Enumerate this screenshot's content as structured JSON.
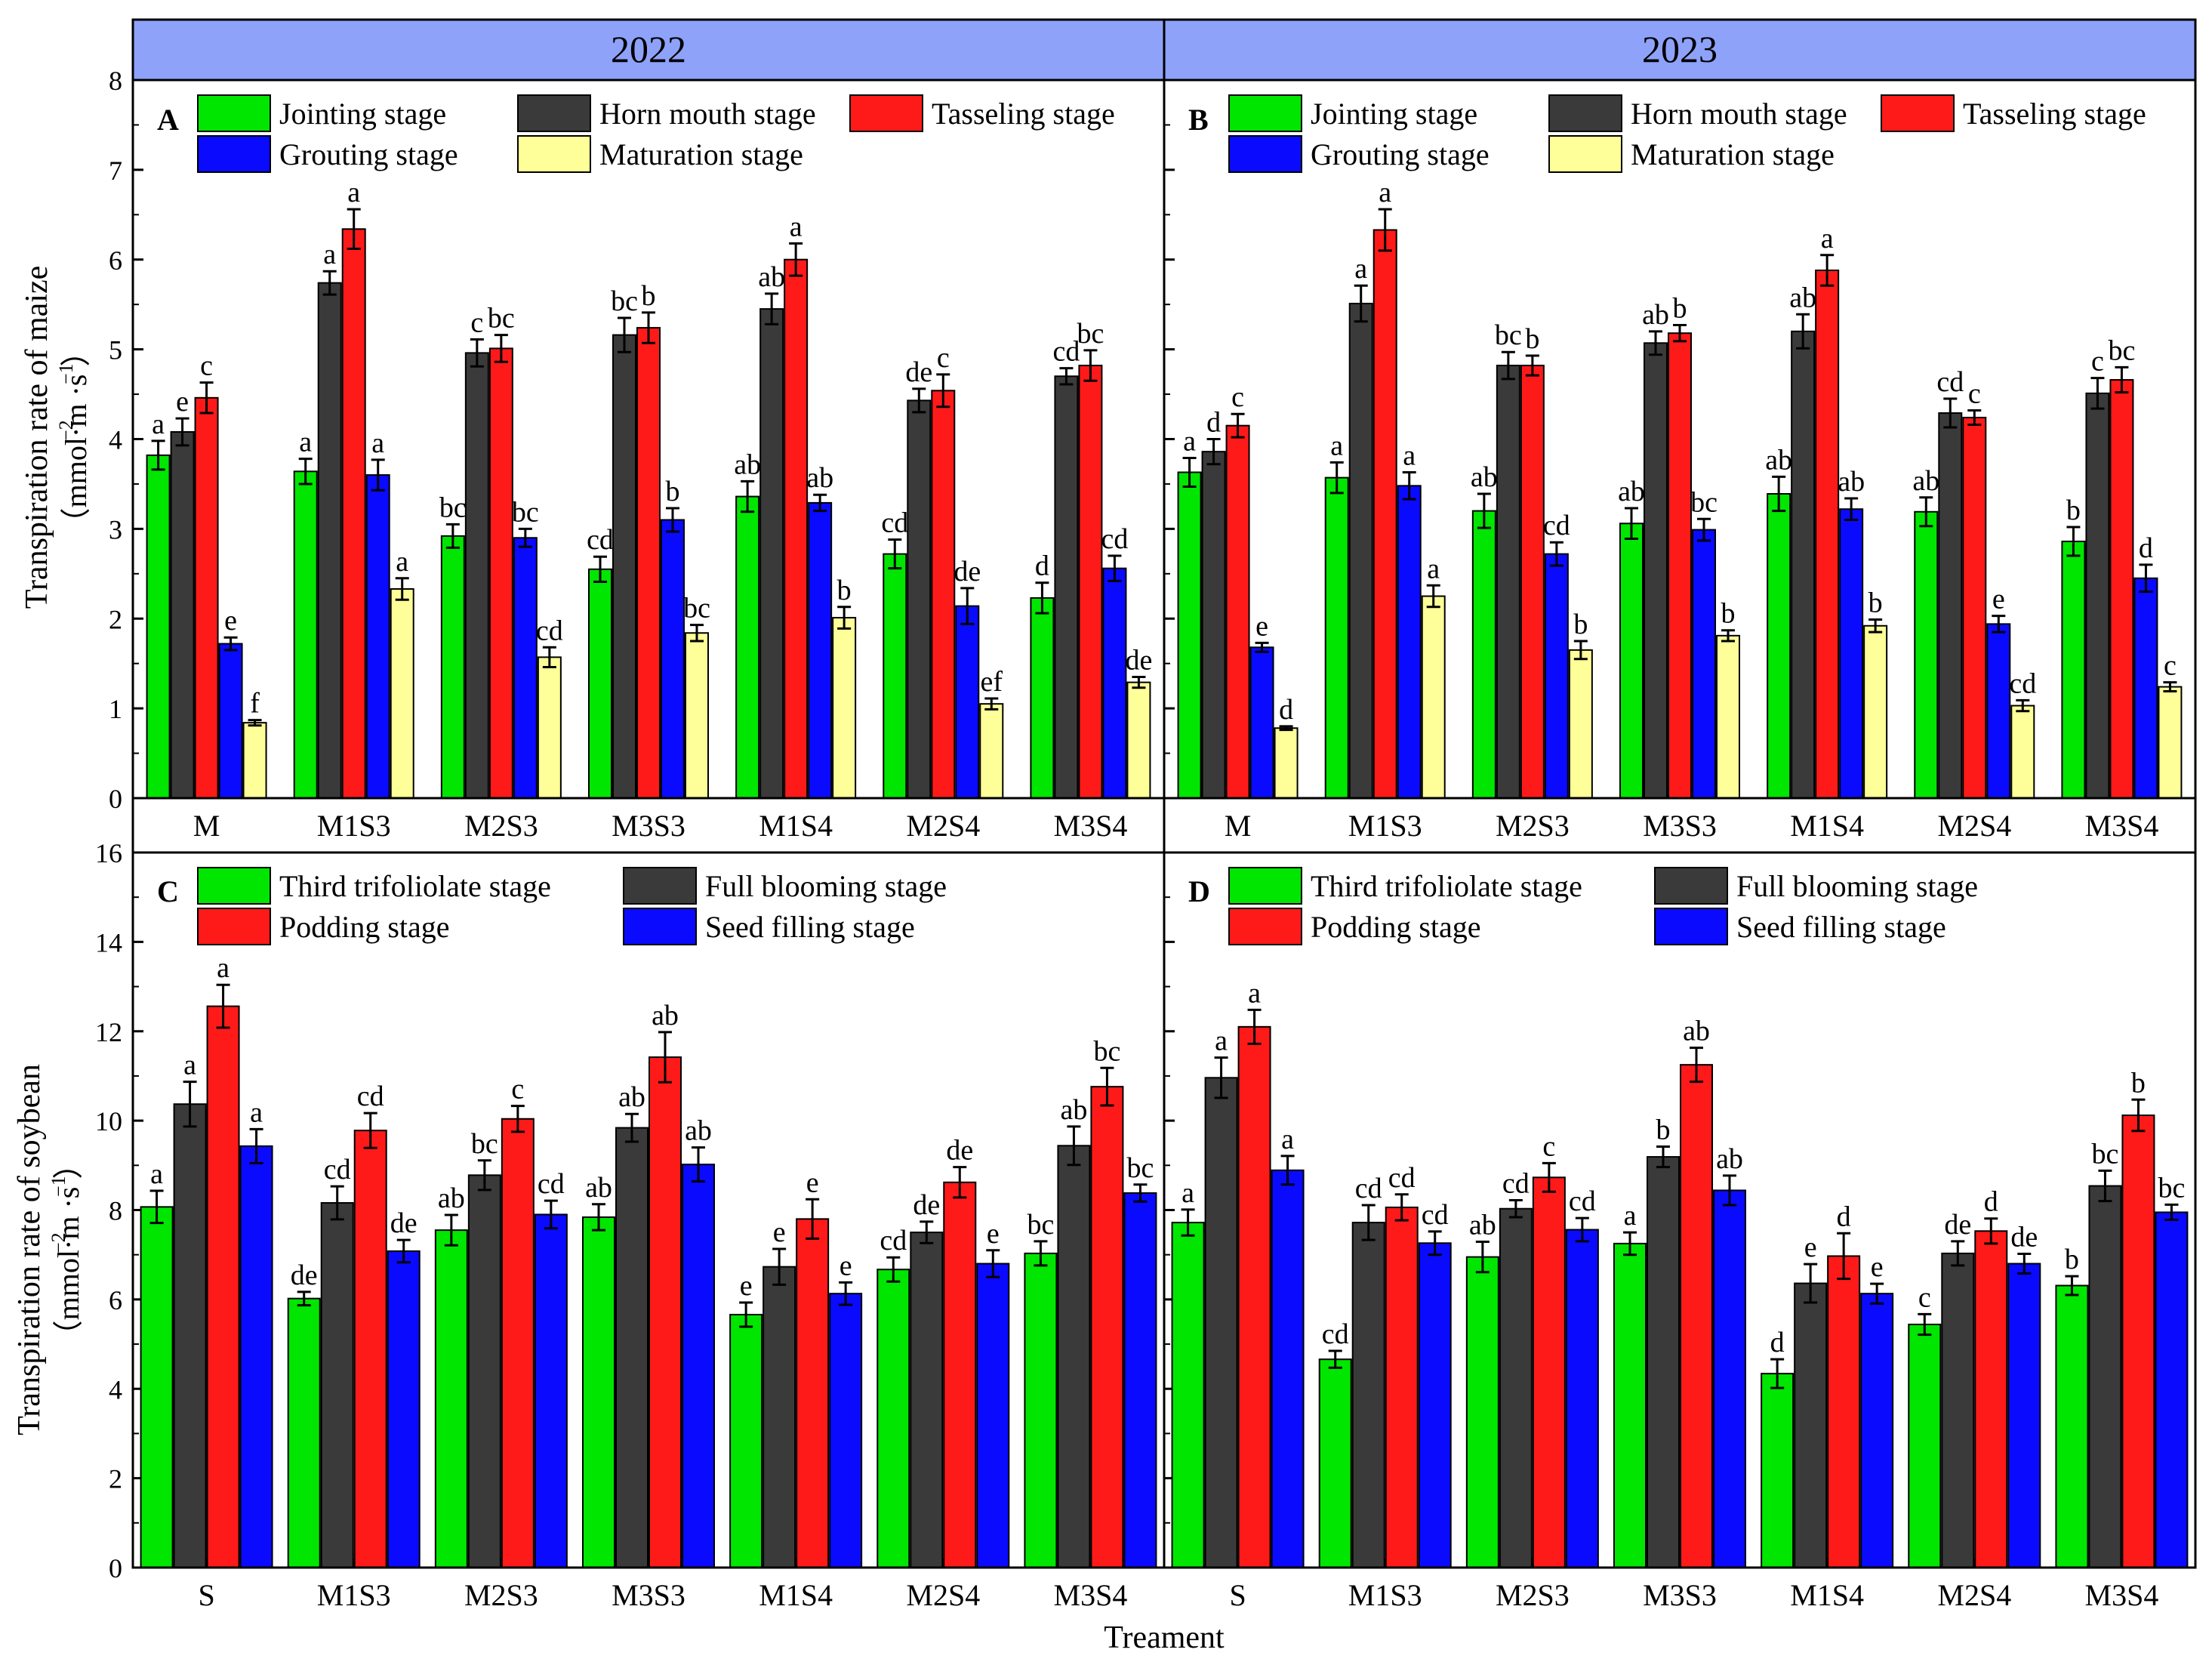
{
  "figure": {
    "year_headers": [
      "2022",
      "2023"
    ],
    "x_axis_title": "Treament",
    "maize_ylabel_line1": "Transpiration rate of maize",
    "soybean_ylabel_line1": "Transpiration rate of soybean",
    "unit_text": "（mmol·m  ·s  ）",
    "unit_sup_m": "−2",
    "unit_sup_s": "−1"
  },
  "colors": {
    "header_bg": "#8ea2fa",
    "green": "#00e600",
    "dark": "#3a3a3a",
    "red": "#ff1a1a",
    "blue": "#0a0aff",
    "yellow": "#ffff99"
  },
  "chart_data": [
    {
      "panel": "A",
      "year": "2022",
      "type": "bar",
      "ylabel": "Transpiration rate of maize (mmol·m−2·s−1)",
      "xlabel": "",
      "ylim": [
        0,
        8
      ],
      "yticks": [
        0,
        1,
        2,
        3,
        4,
        5,
        6,
        7,
        8
      ],
      "categories": [
        "M",
        "M1S3",
        "M2S3",
        "M3S3",
        "M1S4",
        "M2S4",
        "M3S4"
      ],
      "series": [
        {
          "name": "Jointing stage",
          "color": "green",
          "values": [
            3.82,
            3.64,
            2.92,
            2.55,
            3.36,
            2.72,
            2.23
          ],
          "errors": [
            0.16,
            0.14,
            0.13,
            0.14,
            0.17,
            0.16,
            0.17
          ],
          "letters": [
            "a",
            "a",
            "bc",
            "cd",
            "ab",
            "cd",
            "d"
          ]
        },
        {
          "name": "Horn mouth stage",
          "color": "dark",
          "values": [
            4.08,
            5.74,
            4.96,
            5.16,
            5.45,
            4.43,
            4.7
          ],
          "errors": [
            0.15,
            0.13,
            0.15,
            0.19,
            0.17,
            0.13,
            0.09
          ],
          "letters": [
            "e",
            "a",
            "c",
            "bc",
            "ab",
            "de",
            "cd"
          ]
        },
        {
          "name": "Tasseling stage",
          "color": "red",
          "values": [
            4.46,
            6.34,
            5.01,
            5.24,
            6.0,
            4.54,
            4.82
          ],
          "errors": [
            0.17,
            0.22,
            0.15,
            0.17,
            0.18,
            0.18,
            0.17
          ],
          "letters": [
            "c",
            "a",
            "bc",
            "b",
            "a",
            "c",
            "bc"
          ]
        },
        {
          "name": "Grouting stage",
          "color": "blue",
          "values": [
            1.72,
            3.6,
            2.9,
            3.1,
            3.29,
            2.14,
            2.56
          ],
          "errors": [
            0.07,
            0.17,
            0.1,
            0.13,
            0.09,
            0.2,
            0.14
          ],
          "letters": [
            "e",
            "a",
            "bc",
            "b",
            "ab",
            "de",
            "cd"
          ]
        },
        {
          "name": "Maturation stage",
          "color": "yellow",
          "values": [
            0.84,
            2.33,
            1.57,
            1.84,
            2.01,
            1.05,
            1.29
          ],
          "errors": [
            0.03,
            0.12,
            0.11,
            0.09,
            0.12,
            0.06,
            0.06
          ],
          "letters": [
            "f",
            "a",
            "cd",
            "bc",
            "b",
            "ef",
            "de"
          ]
        }
      ]
    },
    {
      "panel": "B",
      "year": "2023",
      "type": "bar",
      "ylabel": "Transpiration rate of maize (mmol·m−2·s−1)",
      "xlabel": "",
      "ylim": [
        0,
        8
      ],
      "yticks": [
        0,
        1,
        2,
        3,
        4,
        5,
        6,
        7,
        8
      ],
      "categories": [
        "M",
        "M1S3",
        "M2S3",
        "M3S3",
        "M1S4",
        "M2S4",
        "M3S4"
      ],
      "series": [
        {
          "name": "Jointing stage",
          "color": "green",
          "values": [
            3.63,
            3.57,
            3.2,
            3.06,
            3.39,
            3.19,
            2.86
          ],
          "errors": [
            0.16,
            0.17,
            0.19,
            0.17,
            0.19,
            0.16,
            0.16
          ],
          "letters": [
            "a",
            "a",
            "ab",
            "ab",
            "ab",
            "ab",
            "b"
          ]
        },
        {
          "name": "Horn mouth stage",
          "color": "dark",
          "values": [
            3.86,
            5.51,
            4.82,
            5.07,
            5.2,
            4.29,
            4.51
          ],
          "errors": [
            0.14,
            0.2,
            0.15,
            0.13,
            0.19,
            0.16,
            0.17
          ],
          "letters": [
            "d",
            "a",
            "bc",
            "ab",
            "ab",
            "cd",
            "c"
          ]
        },
        {
          "name": "Tasseling stage",
          "color": "red",
          "values": [
            4.15,
            6.33,
            4.82,
            5.18,
            5.88,
            4.24,
            4.66
          ],
          "errors": [
            0.13,
            0.23,
            0.11,
            0.09,
            0.17,
            0.08,
            0.14
          ],
          "letters": [
            "c",
            "a",
            "b",
            "b",
            "a",
            "c",
            "bc"
          ]
        },
        {
          "name": "Grouting stage",
          "color": "blue",
          "values": [
            1.68,
            3.48,
            2.72,
            2.99,
            3.22,
            1.94,
            2.45
          ],
          "errors": [
            0.05,
            0.15,
            0.13,
            0.12,
            0.12,
            0.09,
            0.15
          ],
          "letters": [
            "e",
            "a",
            "cd",
            "bc",
            "ab",
            "e",
            "d"
          ]
        },
        {
          "name": "Maturation stage",
          "color": "yellow",
          "values": [
            0.78,
            2.25,
            1.65,
            1.81,
            1.92,
            1.03,
            1.24
          ],
          "errors": [
            0.02,
            0.12,
            0.1,
            0.06,
            0.07,
            0.06,
            0.05
          ],
          "letters": [
            "d",
            "a",
            "b",
            "b",
            "b",
            "cd",
            "c"
          ]
        }
      ]
    },
    {
      "panel": "C",
      "year": "2022",
      "type": "bar",
      "ylabel": "Transpiration rate of soybean (mmol·m−2·s−1)",
      "xlabel": "Treament",
      "ylim": [
        0,
        16
      ],
      "yticks": [
        0,
        2,
        4,
        6,
        8,
        10,
        12,
        14,
        16
      ],
      "categories": [
        "S",
        "M1S3",
        "M2S3",
        "M3S3",
        "M1S4",
        "M2S4",
        "M3S4"
      ],
      "series": [
        {
          "name": "Third trifoliolate stage",
          "color": "green",
          "values": [
            8.07,
            6.02,
            7.55,
            7.84,
            5.66,
            6.67,
            7.03
          ],
          "errors": [
            0.36,
            0.15,
            0.34,
            0.29,
            0.27,
            0.27,
            0.27
          ],
          "letters": [
            "a",
            "de",
            "ab",
            "ab",
            "e",
            "cd",
            "bc"
          ]
        },
        {
          "name": "Full blooming stage",
          "color": "dark",
          "values": [
            10.37,
            8.16,
            8.78,
            9.84,
            6.73,
            7.5,
            9.44
          ],
          "errors": [
            0.5,
            0.37,
            0.33,
            0.31,
            0.4,
            0.24,
            0.43
          ],
          "letters": [
            "a",
            "cd",
            "bc",
            "ab",
            "e",
            "de",
            "ab"
          ]
        },
        {
          "name": "Podding stage",
          "color": "red",
          "values": [
            12.56,
            9.78,
            10.04,
            11.42,
            7.8,
            8.62,
            10.76
          ],
          "errors": [
            0.48,
            0.39,
            0.29,
            0.56,
            0.44,
            0.34,
            0.42
          ],
          "letters": [
            "a",
            "cd",
            "c",
            "ab",
            "e",
            "de",
            "bc"
          ]
        },
        {
          "name": "Seed filling stage",
          "color": "blue",
          "values": [
            9.43,
            7.08,
            7.9,
            9.02,
            6.13,
            6.8,
            8.38
          ],
          "errors": [
            0.38,
            0.25,
            0.31,
            0.38,
            0.25,
            0.3,
            0.19
          ],
          "letters": [
            "a",
            "de",
            "cd",
            "ab",
            "e",
            "e",
            "bc"
          ]
        }
      ]
    },
    {
      "panel": "D",
      "year": "2023",
      "type": "bar",
      "ylabel": "Transpiration rate of soybean (mmol·m−2·s−1)",
      "xlabel": "Treament",
      "ylim": [
        0,
        16
      ],
      "yticks": [
        0,
        2,
        4,
        6,
        8,
        10,
        12,
        14,
        16
      ],
      "categories": [
        "S",
        "M1S3",
        "M2S3",
        "M3S3",
        "M1S4",
        "M2S4",
        "M3S4"
      ],
      "series": [
        {
          "name": "Third trifoliolate stage",
          "color": "green",
          "values": [
            7.72,
            4.66,
            6.95,
            7.25,
            4.34,
            5.44,
            6.31
          ],
          "errors": [
            0.29,
            0.19,
            0.34,
            0.25,
            0.32,
            0.23,
            0.21
          ],
          "letters": [
            "a",
            "cd",
            "ab",
            "a",
            "d",
            "c",
            "b"
          ]
        },
        {
          "name": "Full blooming stage",
          "color": "dark",
          "values": [
            10.96,
            7.72,
            8.03,
            9.19,
            6.36,
            7.03,
            8.54
          ],
          "errors": [
            0.45,
            0.39,
            0.19,
            0.23,
            0.43,
            0.27,
            0.34
          ],
          "letters": [
            "a",
            "cd",
            "cd",
            "b",
            "e",
            "de",
            "bc"
          ]
        },
        {
          "name": "Podding stage",
          "color": "red",
          "values": [
            12.1,
            8.06,
            8.73,
            11.25,
            6.97,
            7.53,
            10.12
          ],
          "errors": [
            0.38,
            0.29,
            0.32,
            0.38,
            0.51,
            0.28,
            0.35
          ],
          "letters": [
            "a",
            "cd",
            "c",
            "ab",
            "d",
            "d",
            "b"
          ]
        },
        {
          "name": "Seed filling stage",
          "color": "blue",
          "values": [
            8.89,
            7.26,
            7.56,
            8.44,
            6.13,
            6.8,
            7.95
          ],
          "errors": [
            0.32,
            0.26,
            0.26,
            0.33,
            0.22,
            0.22,
            0.17
          ],
          "letters": [
            "a",
            "cd",
            "cd",
            "ab",
            "e",
            "de",
            "bc"
          ]
        }
      ]
    }
  ]
}
